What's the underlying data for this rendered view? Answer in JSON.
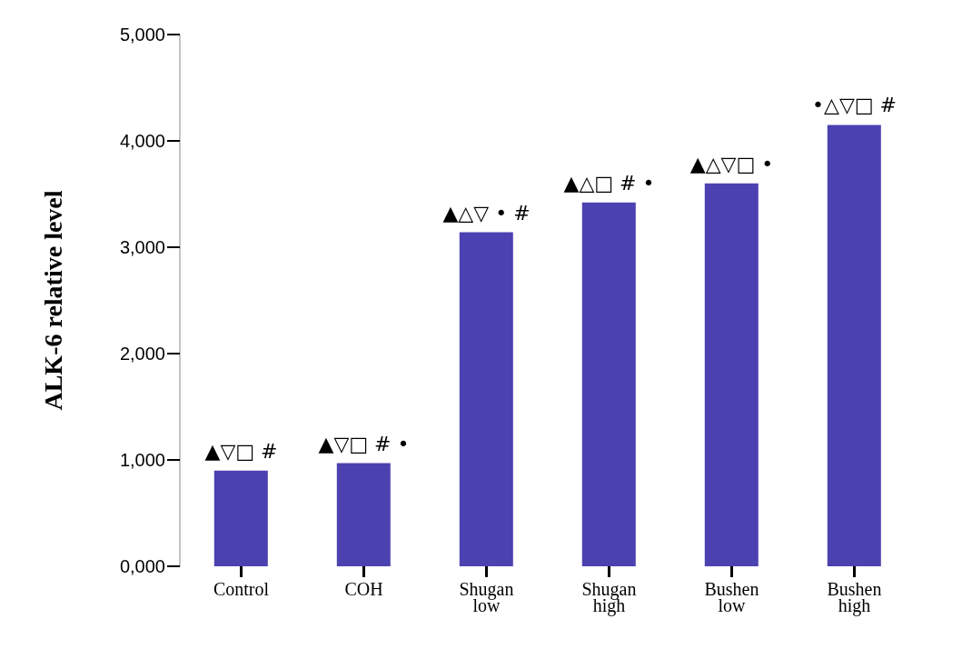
{
  "chart_data": {
    "type": "bar",
    "ylabel": "ALK-6 relative level",
    "categories": [
      "Control",
      "COH",
      "Shugan low",
      "Shugan high",
      "Bushen low",
      "Bushen high"
    ],
    "values": [
      900,
      970,
      3140,
      3420,
      3600,
      4150
    ],
    "color": "#4c41b0",
    "ylim": [
      0,
      5000
    ],
    "yticks": [
      {
        "value": 0,
        "label": "0,000"
      },
      {
        "value": 1000,
        "label": "1,000"
      },
      {
        "value": 2000,
        "label": "2,000"
      },
      {
        "value": 3000,
        "label": "3,000"
      },
      {
        "value": 4000,
        "label": "4,000"
      },
      {
        "value": 5000,
        "label": "5,000"
      }
    ],
    "grid": false,
    "legend": false,
    "annotations": [
      {
        "text": "▲▽□ #",
        "x": "Control",
        "y": 900
      },
      {
        "text": "▲▽□ # •",
        "x": "COH",
        "y": 970
      },
      {
        "text": "▲△▽ • #",
        "x": "Shugan low",
        "y": 3140
      },
      {
        "text": "▲△□ # •",
        "x": "Shugan high",
        "y": 3420
      },
      {
        "text": "▲△▽□ •",
        "x": "Bushen low",
        "y": 3600
      },
      {
        "text": "•△▽□ #",
        "x": "Bushen high",
        "y": 4150
      }
    ]
  }
}
